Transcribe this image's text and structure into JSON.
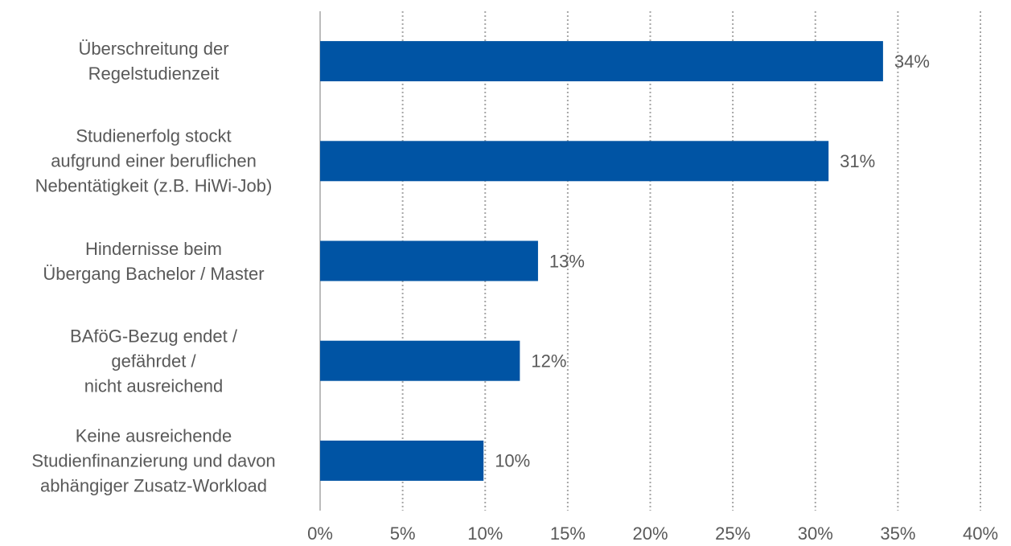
{
  "chart_data": {
    "type": "hbar",
    "categories": [
      "Überschreitung der\nRegelstudienzeit",
      "Studienerfolg stockt\naufgrund einer beruflichen\nNebentätigkeit (z.B. HiWi-Job)",
      "Hindernisse beim\nÜbergang Bachelor / Master",
      "BAföG-Bezug endet /\ngefährdet /\nnicht ausreichend",
      "Keine ausreichende\nStudienfinanzierung und davon\nabhängiger Zusatz-Workload"
    ],
    "values": [
      34.1,
      30.8,
      13.2,
      12.1,
      9.9
    ],
    "value_labels": [
      "34%",
      "31%",
      "13%",
      "12%",
      "10%"
    ],
    "color": "#0054a4",
    "xlim": [
      0,
      40
    ],
    "xticks": [
      {
        "value": 0,
        "label": "0%"
      },
      {
        "value": 5,
        "label": "5%"
      },
      {
        "value": 10,
        "label": "10%"
      },
      {
        "value": 15,
        "label": "15%"
      },
      {
        "value": 20,
        "label": "20%"
      },
      {
        "value": 25,
        "label": "25%"
      },
      {
        "value": 30,
        "label": "30%"
      },
      {
        "value": 35,
        "label": "35%"
      },
      {
        "value": 40,
        "label": "40%"
      }
    ],
    "grid": true
  }
}
